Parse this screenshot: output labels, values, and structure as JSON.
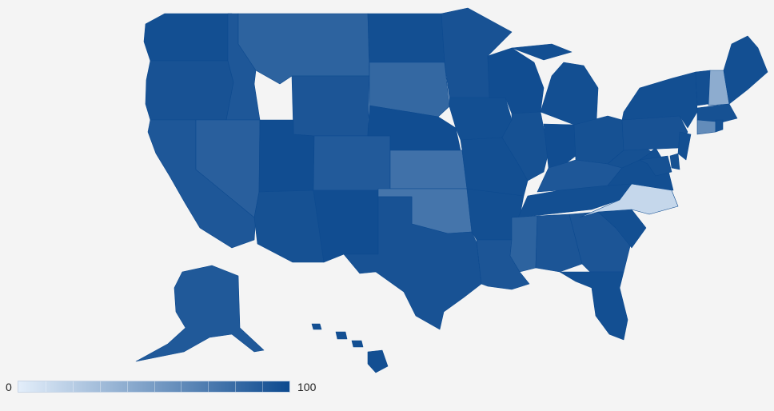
{
  "legend": {
    "min_label": "0",
    "max_label": "100",
    "color_min": "#e3eefa",
    "color_max": "#0d4a8f"
  },
  "map": {
    "region": "United States",
    "resolution": "states",
    "scale": [
      0,
      100
    ],
    "background": "#f4f4f4",
    "states": [
      {
        "id": "WA",
        "value": 97
      },
      {
        "id": "OR",
        "value": 95
      },
      {
        "id": "CA",
        "value": 92
      },
      {
        "id": "ID",
        "value": 92
      },
      {
        "id": "NV",
        "value": 87
      },
      {
        "id": "MT",
        "value": 85
      },
      {
        "id": "WY",
        "value": 93
      },
      {
        "id": "UT",
        "value": 98
      },
      {
        "id": "AZ",
        "value": 96
      },
      {
        "id": "CO",
        "value": 90
      },
      {
        "id": "NM",
        "value": 98
      },
      {
        "id": "ND",
        "value": 97
      },
      {
        "id": "SD",
        "value": 82
      },
      {
        "id": "NE",
        "value": 98
      },
      {
        "id": "KS",
        "value": 76
      },
      {
        "id": "OK",
        "value": 74
      },
      {
        "id": "TX",
        "value": 95
      },
      {
        "id": "MN",
        "value": 95
      },
      {
        "id": "IA",
        "value": 97
      },
      {
        "id": "MO",
        "value": 97
      },
      {
        "id": "AR",
        "value": 97
      },
      {
        "id": "LA",
        "value": 93
      },
      {
        "id": "WI",
        "value": 98
      },
      {
        "id": "IL",
        "value": 96
      },
      {
        "id": "MI",
        "value": 97
      },
      {
        "id": "IN",
        "value": 98
      },
      {
        "id": "OH",
        "value": 96
      },
      {
        "id": "KY",
        "value": 92
      },
      {
        "id": "TN",
        "value": 97
      },
      {
        "id": "MS",
        "value": 85
      },
      {
        "id": "AL",
        "value": 93
      },
      {
        "id": "GA",
        "value": 93
      },
      {
        "id": "FL",
        "value": 97
      },
      {
        "id": "SC",
        "value": 97
      },
      {
        "id": "NC",
        "value": 14
      },
      {
        "id": "VA",
        "value": 97
      },
      {
        "id": "WV",
        "value": 96
      },
      {
        "id": "PA",
        "value": 95
      },
      {
        "id": "NY",
        "value": 97
      },
      {
        "id": "VT",
        "value": 97
      },
      {
        "id": "NH",
        "value": 40
      },
      {
        "id": "ME",
        "value": 97
      },
      {
        "id": "MA",
        "value": 96
      },
      {
        "id": "CT",
        "value": 60
      },
      {
        "id": "RI",
        "value": 96
      },
      {
        "id": "NJ",
        "value": 97
      },
      {
        "id": "DE",
        "value": 96
      },
      {
        "id": "MD",
        "value": 96
      },
      {
        "id": "AK",
        "value": 91
      },
      {
        "id": "HI",
        "value": 97
      }
    ]
  }
}
